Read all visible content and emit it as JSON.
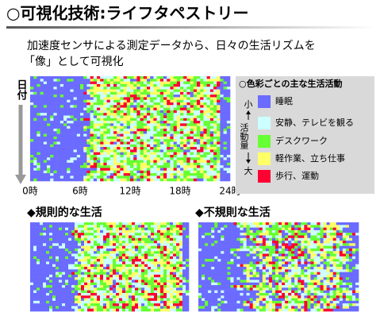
{
  "header": {
    "title": "○可視化技術:ライフタペストリー",
    "subtitle_lines": [
      "加速度センサによる測定データから、日々の生活リズムを",
      "「像」として可視化"
    ]
  },
  "main_tapestry": {
    "y_label": "日付",
    "x_labels": [
      "0時",
      "6時",
      "12時",
      "18時",
      "24時"
    ]
  },
  "legend": {
    "title": "○色彩ごとの主な生活活動",
    "scale_small": "小",
    "scale_label": "活動量",
    "scale_large": "大",
    "items": [
      {
        "label": "睡眠",
        "color": "#6b6bff"
      },
      {
        "label": "安静、テレビを観る",
        "color": "#ccffff"
      },
      {
        "label": "デスクワーク",
        "color": "#66ff33"
      },
      {
        "label": "軽作業、立ち仕事",
        "color": "#ffff66"
      },
      {
        "label": "歩行、運動",
        "color": "#ff0033"
      }
    ]
  },
  "examples": [
    {
      "title": "◆規則的な生活"
    },
    {
      "title": "◆不規則な生活"
    }
  ]
}
